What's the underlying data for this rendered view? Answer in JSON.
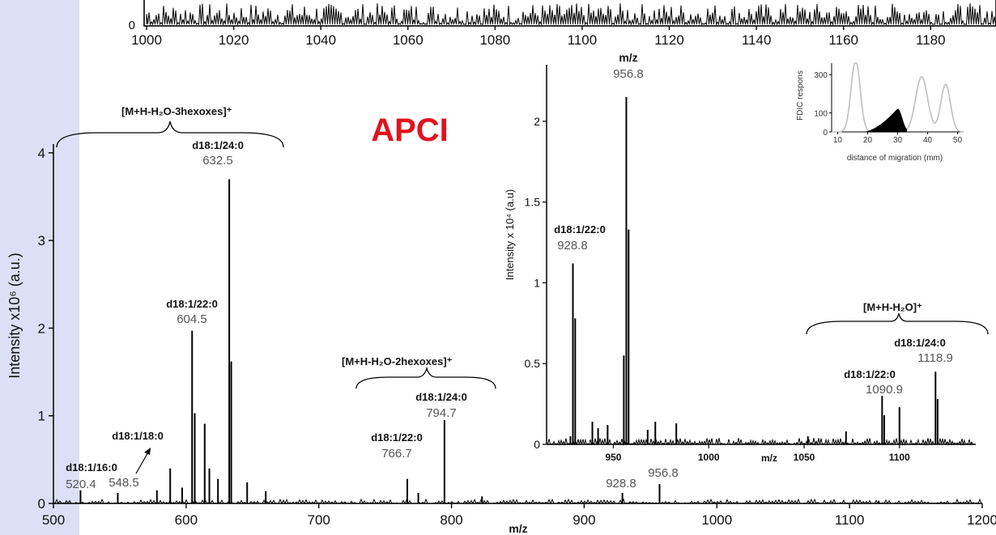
{
  "colors": {
    "accent_title": "#e0141e",
    "spectrum": "#000000",
    "corner_panel": "#dde0f5",
    "inset_trace": "#bfbfbf"
  },
  "headline": "APCI",
  "chart_data": [
    {
      "type": "line",
      "role": "top-strip-partial-spectrum",
      "xlabel": "m/z",
      "xlim": [
        1000,
        1195
      ],
      "x_ticks": [
        1000,
        1020,
        1040,
        1060,
        1080,
        1100,
        1120,
        1140,
        1160,
        1180
      ],
      "y_ticks": [
        0
      ]
    },
    {
      "type": "bar",
      "role": "main-spectrum",
      "xlabel": "m/z",
      "ylabel": "Intensity  x10⁶ (a.u.)",
      "xlim": [
        500,
        1200
      ],
      "ylim": [
        0,
        4.1
      ],
      "x_ticks": [
        500,
        600,
        700,
        800,
        900,
        1000,
        1100,
        1200
      ],
      "y_ticks": [
        0,
        1,
        2,
        3,
        4
      ],
      "x": [
        520.4,
        548.5,
        578.0,
        588.0,
        597.0,
        604.5,
        606.5,
        614.0,
        617.5,
        624.0,
        632.5,
        634.0,
        646.0,
        660.0,
        766.7,
        775.0,
        794.7,
        823.0,
        928.8,
        956.8,
        1122.0
      ],
      "values": [
        0.15,
        0.12,
        0.15,
        0.4,
        0.18,
        1.97,
        1.03,
        0.91,
        0.4,
        0.28,
        3.7,
        1.62,
        0.24,
        0.14,
        0.28,
        0.12,
        0.95,
        0.08,
        0.12,
        0.22,
        0.03
      ],
      "peak_labels": [
        {
          "name": "d18:1/16:0",
          "mz": "520.4"
        },
        {
          "name": "d18:1/18:0",
          "mz": "548.5"
        },
        {
          "name": "d18:1/22:0",
          "mz": "604.5"
        },
        {
          "name": "d18:1/24:0",
          "mz": "632.5"
        },
        {
          "name": "d18:1/22:0",
          "mz": "766.7"
        },
        {
          "name": "d18:1/24:0",
          "mz": "794.7"
        },
        {
          "name": "",
          "mz": "928.8"
        },
        {
          "name": "",
          "mz": "956.8"
        }
      ],
      "annotations": [
        "[M+H-H₂O-3hexoxes]⁺",
        "[M+H-H₂O-2hexoxes]⁺"
      ]
    },
    {
      "type": "bar",
      "role": "inset-spectrum",
      "xlabel": "m/z",
      "ylabel": "Intensity x 10⁴ (a.u)",
      "xlim": [
        915,
        1140
      ],
      "ylim": [
        0,
        2.35
      ],
      "x_ticks": [
        950,
        1000,
        1050,
        1100
      ],
      "y_ticks": [
        0,
        0.5,
        1,
        1.5,
        2
      ],
      "x": [
        927.5,
        928.8,
        930.0,
        939.0,
        942.0,
        947.0,
        955.5,
        956.8,
        958.0,
        968.0,
        972.0,
        983.0,
        1052.0,
        1072.0,
        1090.9,
        1092.0,
        1100.0,
        1118.9,
        1120.0
      ],
      "values": [
        0.05,
        1.12,
        0.78,
        0.14,
        0.1,
        0.12,
        0.55,
        2.15,
        1.33,
        0.09,
        0.14,
        0.13,
        0.05,
        0.08,
        0.3,
        0.18,
        0.23,
        0.45,
        0.28
      ],
      "peak_labels": [
        {
          "name": "",
          "mz": "956.8"
        },
        {
          "name": "d18:1/22:0",
          "mz": "928.8"
        },
        {
          "name": "d18:1/24:0",
          "mz": "1118.9"
        },
        {
          "name": "d18:1/22:0",
          "mz": "1090.9"
        }
      ],
      "annotations": [
        "[M+H-H₂O]⁺"
      ],
      "top_label_fragment": "m/z"
    },
    {
      "type": "line",
      "role": "fdic-migration-inset",
      "xlabel": "distance of migration (mm)",
      "ylabel": "FDIC respons",
      "xlim": [
        8,
        52
      ],
      "ylim": [
        0,
        360
      ],
      "x_ticks": [
        10,
        20,
        30,
        40,
        50
      ],
      "y_ticks": [
        0,
        100,
        300
      ]
    }
  ]
}
